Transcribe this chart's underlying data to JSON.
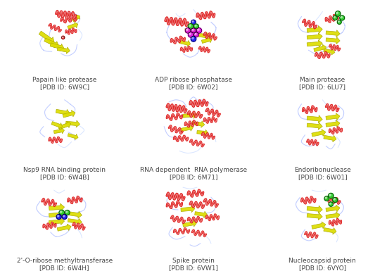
{
  "proteins": [
    {
      "name": "Papain like protease",
      "pdb": "[PDB ID: 6W9C]",
      "row": 0,
      "col": 0
    },
    {
      "name": "ADP ribose phosphatase",
      "pdb": "[PDB ID: 6W02]",
      "row": 0,
      "col": 1
    },
    {
      "name": "Main protease",
      "pdb": "[PDB ID: 6LU7]",
      "row": 0,
      "col": 2
    },
    {
      "name": "Nsp9 RNA binding protein",
      "pdb": "[PDB ID: 6W4B]",
      "row": 1,
      "col": 0
    },
    {
      "name": "RNA dependent  RNA polymerase",
      "pdb": "[PDB ID: 6M71]",
      "row": 1,
      "col": 1
    },
    {
      "name": "Endoribonuclease",
      "pdb": "[PDB ID: 6W01]",
      "row": 1,
      "col": 2
    },
    {
      "name": "2'-O-ribose methyltransferase",
      "pdb": "[PDB ID: 6W4H]",
      "row": 2,
      "col": 0
    },
    {
      "name": "Spike protein",
      "pdb": "[PDB ID: 6VW1]",
      "row": 2,
      "col": 1
    },
    {
      "name": "Nucleocapsid protein",
      "pdb": "[PDB ID: 6VYO]",
      "row": 2,
      "col": 2
    }
  ],
  "figure_width": 5.5,
  "figure_height": 3.85,
  "dpi": 100,
  "background_color": "#ffffff",
  "label_fontsize": 6.5,
  "label_color": "#444444",
  "grid_rows": 3,
  "grid_cols": 3,
  "colors": {
    "helix": "#dd1111",
    "sheet": "#dddd00",
    "sheet_edge": "#aaaa00",
    "loop": "#aabbff",
    "loop2": "#ccddff",
    "lig_green": "#22cc22",
    "lig_magenta": "#dd11dd",
    "lig_blue": "#1111ee",
    "lig_red": "#ff3333",
    "lig_orange": "#ff8800"
  }
}
